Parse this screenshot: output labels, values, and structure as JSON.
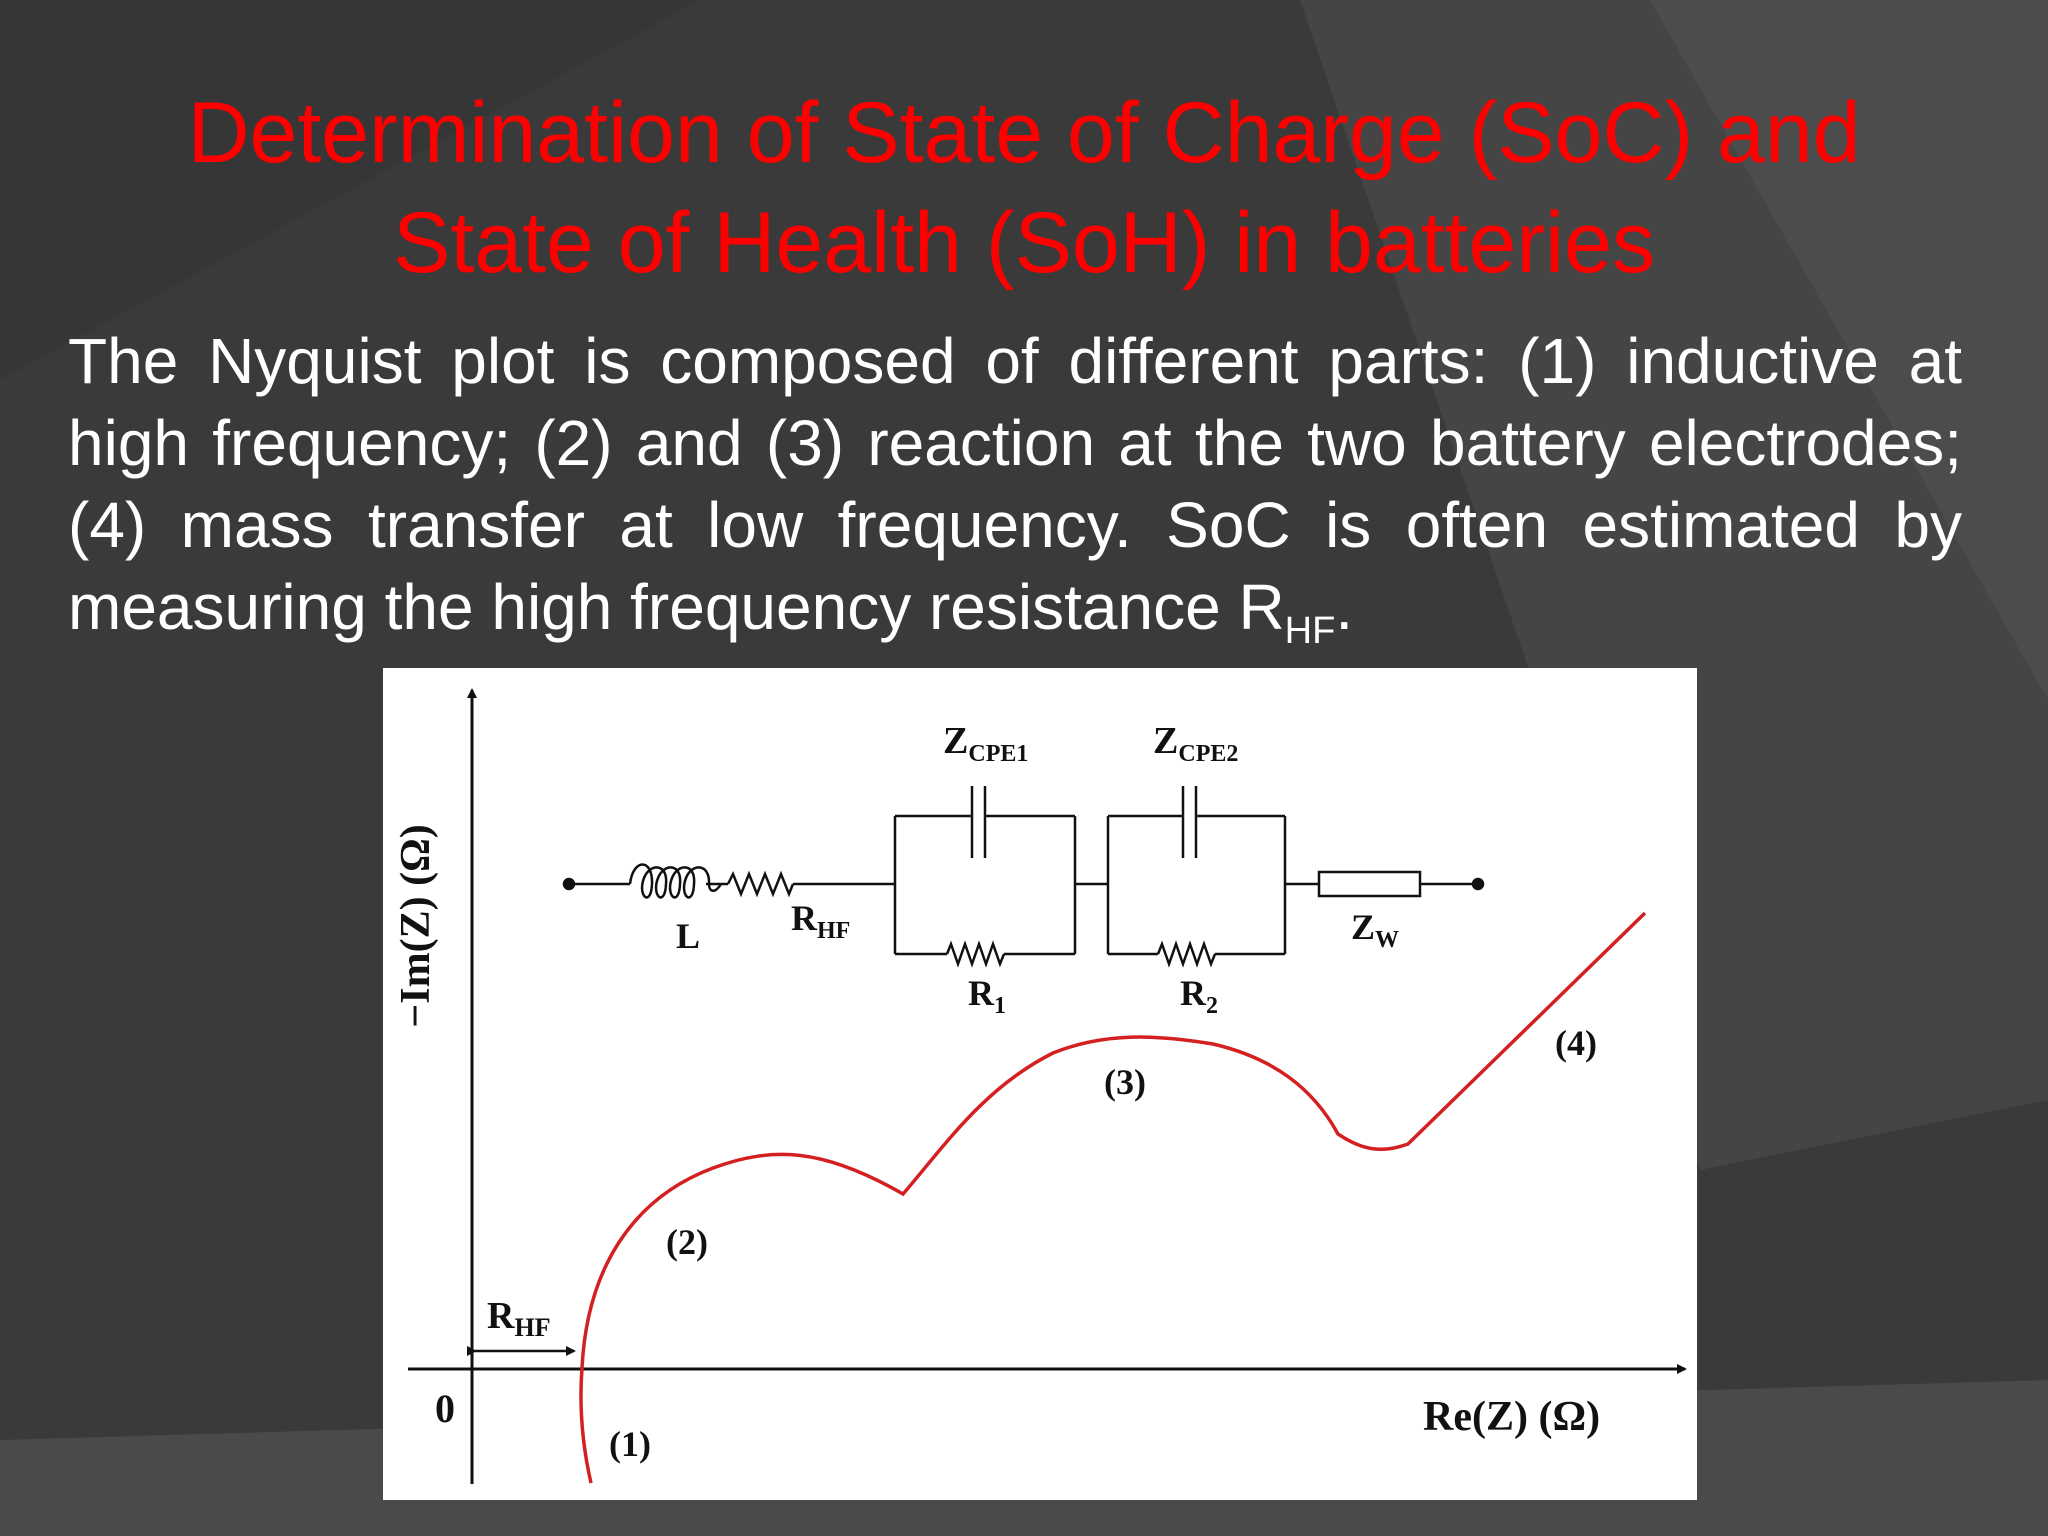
{
  "slide": {
    "title_line1": "Determination of State of Charge (SoC) and",
    "title_line2": "State of Health (SoH) in batteries",
    "body_main": "The Nyquist plot is composed of different parts: (1) inductive at high frequency; (2) and (3) reaction at the two battery electrodes; (4) mass transfer at low frequency. SoC is often estimated by measuring the high frequency resistance R",
    "body_sub": "HF",
    "body_end": "."
  },
  "diagram": {
    "y_axis_label": "−Im(Z) (Ω)",
    "x_axis_label": "Re(Z) (Ω)",
    "origin_label": "0",
    "rhf_main": "R",
    "rhf_sub": "HF",
    "region_labels": [
      "(1)",
      "(2)",
      "(3)",
      "(4)"
    ],
    "circuit": {
      "inductor": "L",
      "resistor_main": "R",
      "resistor_sub": "HF",
      "cpe1_main": "Z",
      "cpe1_sub": "CPE1",
      "cpe2_main": "Z",
      "cpe2_sub": "CPE2",
      "r1_main": "R",
      "r1_sub": "1",
      "r2_main": "R",
      "r2_sub": "2",
      "warburg_main": "Z",
      "warburg_sub": "W"
    }
  },
  "colors": {
    "background": "#3d3d3d",
    "title": "#ff0000",
    "curve": "#d42020",
    "text": "#ffffff"
  }
}
